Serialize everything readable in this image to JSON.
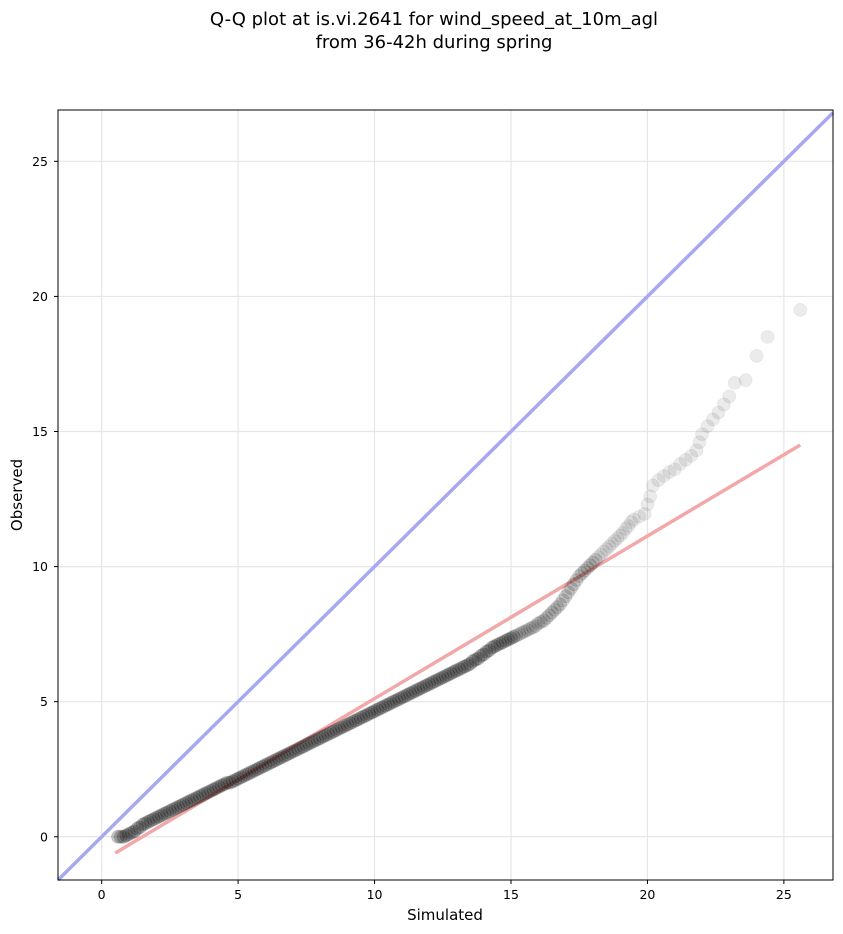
{
  "chart_data": {
    "type": "scatter",
    "title": [
      "Q-Q plot at is.vi.2641 for wind_speed_at_10m_agl",
      "from 36-42h during spring"
    ],
    "xlabel": "Simulated",
    "ylabel": "Observed",
    "xlim": [
      -1.6,
      26.8
    ],
    "ylim": [
      -1.6,
      26.9
    ],
    "xticks": [
      0,
      5,
      10,
      15,
      20,
      25
    ],
    "yticks": [
      0,
      5,
      10,
      15,
      20,
      25
    ],
    "grid": true,
    "colors": {
      "points": "#000000",
      "identity_line": "#a8a8f2",
      "fit_line": "#f2a8a8"
    },
    "identity_line": {
      "x": [
        -1.6,
        26.8
      ],
      "y": [
        -1.6,
        26.8
      ]
    },
    "fit_line": {
      "x": [
        0.5,
        25.6
      ],
      "y": [
        -0.6,
        14.5
      ]
    },
    "points": [
      [
        0.6,
        0.0
      ],
      [
        0.7,
        0.0
      ],
      [
        0.8,
        0.0
      ],
      [
        0.9,
        0.05
      ],
      [
        1.0,
        0.1
      ],
      [
        1.1,
        0.15
      ],
      [
        1.2,
        0.2
      ],
      [
        1.3,
        0.3
      ],
      [
        1.4,
        0.35
      ],
      [
        1.5,
        0.45
      ],
      [
        1.6,
        0.5
      ],
      [
        1.7,
        0.55
      ],
      [
        1.8,
        0.6
      ],
      [
        1.9,
        0.65
      ],
      [
        2.0,
        0.7
      ],
      [
        2.1,
        0.75
      ],
      [
        2.2,
        0.8
      ],
      [
        2.3,
        0.85
      ],
      [
        2.4,
        0.9
      ],
      [
        2.5,
        0.95
      ],
      [
        2.6,
        1.0
      ],
      [
        2.7,
        1.05
      ],
      [
        2.8,
        1.1
      ],
      [
        2.9,
        1.15
      ],
      [
        3.0,
        1.2
      ],
      [
        3.1,
        1.25
      ],
      [
        3.2,
        1.3
      ],
      [
        3.3,
        1.35
      ],
      [
        3.4,
        1.4
      ],
      [
        3.5,
        1.45
      ],
      [
        3.6,
        1.5
      ],
      [
        3.7,
        1.55
      ],
      [
        3.8,
        1.6
      ],
      [
        3.9,
        1.65
      ],
      [
        4.0,
        1.7
      ],
      [
        4.1,
        1.75
      ],
      [
        4.2,
        1.8
      ],
      [
        4.3,
        1.85
      ],
      [
        4.4,
        1.9
      ],
      [
        4.5,
        1.95
      ],
      [
        4.6,
        2.0
      ],
      [
        4.7,
        2.0
      ],
      [
        4.8,
        2.05
      ],
      [
        4.9,
        2.1
      ],
      [
        5.0,
        2.15
      ],
      [
        5.1,
        2.2
      ],
      [
        5.2,
        2.25
      ],
      [
        5.3,
        2.3
      ],
      [
        5.4,
        2.35
      ],
      [
        5.5,
        2.4
      ],
      [
        5.6,
        2.45
      ],
      [
        5.7,
        2.5
      ],
      [
        5.8,
        2.55
      ],
      [
        5.9,
        2.6
      ],
      [
        6.0,
        2.65
      ],
      [
        6.1,
        2.7
      ],
      [
        6.2,
        2.75
      ],
      [
        6.3,
        2.8
      ],
      [
        6.4,
        2.85
      ],
      [
        6.5,
        2.9
      ],
      [
        6.6,
        2.95
      ],
      [
        6.7,
        3.0
      ],
      [
        6.8,
        3.05
      ],
      [
        6.9,
        3.1
      ],
      [
        7.0,
        3.15
      ],
      [
        7.1,
        3.2
      ],
      [
        7.2,
        3.25
      ],
      [
        7.3,
        3.3
      ],
      [
        7.4,
        3.35
      ],
      [
        7.5,
        3.4
      ],
      [
        7.6,
        3.45
      ],
      [
        7.7,
        3.5
      ],
      [
        7.8,
        3.55
      ],
      [
        7.9,
        3.6
      ],
      [
        8.0,
        3.65
      ],
      [
        8.1,
        3.7
      ],
      [
        8.2,
        3.75
      ],
      [
        8.3,
        3.8
      ],
      [
        8.4,
        3.85
      ],
      [
        8.5,
        3.9
      ],
      [
        8.6,
        3.95
      ],
      [
        8.7,
        4.0
      ],
      [
        8.8,
        4.05
      ],
      [
        8.9,
        4.1
      ],
      [
        9.0,
        4.15
      ],
      [
        9.1,
        4.2
      ],
      [
        9.2,
        4.25
      ],
      [
        9.3,
        4.3
      ],
      [
        9.4,
        4.35
      ],
      [
        9.5,
        4.4
      ],
      [
        9.6,
        4.45
      ],
      [
        9.7,
        4.5
      ],
      [
        9.8,
        4.55
      ],
      [
        9.9,
        4.6
      ],
      [
        10.0,
        4.65
      ],
      [
        10.1,
        4.7
      ],
      [
        10.2,
        4.75
      ],
      [
        10.3,
        4.8
      ],
      [
        10.4,
        4.85
      ],
      [
        10.5,
        4.9
      ],
      [
        10.6,
        4.95
      ],
      [
        10.7,
        5.0
      ],
      [
        10.8,
        5.05
      ],
      [
        10.9,
        5.1
      ],
      [
        11.0,
        5.15
      ],
      [
        11.1,
        5.2
      ],
      [
        11.2,
        5.25
      ],
      [
        11.3,
        5.3
      ],
      [
        11.4,
        5.35
      ],
      [
        11.5,
        5.4
      ],
      [
        11.6,
        5.45
      ],
      [
        11.7,
        5.5
      ],
      [
        11.8,
        5.55
      ],
      [
        11.9,
        5.6
      ],
      [
        12.0,
        5.65
      ],
      [
        12.1,
        5.7
      ],
      [
        12.2,
        5.75
      ],
      [
        12.3,
        5.8
      ],
      [
        12.4,
        5.85
      ],
      [
        12.5,
        5.9
      ],
      [
        12.6,
        5.95
      ],
      [
        12.7,
        6.0
      ],
      [
        12.8,
        6.05
      ],
      [
        12.9,
        6.1
      ],
      [
        13.0,
        6.15
      ],
      [
        13.1,
        6.2
      ],
      [
        13.2,
        6.25
      ],
      [
        13.3,
        6.3
      ],
      [
        13.4,
        6.35
      ],
      [
        13.5,
        6.4
      ],
      [
        13.6,
        6.5
      ],
      [
        13.7,
        6.55
      ],
      [
        13.8,
        6.6
      ],
      [
        13.9,
        6.7
      ],
      [
        14.0,
        6.75
      ],
      [
        14.1,
        6.85
      ],
      [
        14.2,
        6.9
      ],
      [
        14.3,
        7.0
      ],
      [
        14.4,
        7.05
      ],
      [
        14.5,
        7.1
      ],
      [
        14.6,
        7.15
      ],
      [
        14.7,
        7.2
      ],
      [
        14.8,
        7.25
      ],
      [
        14.9,
        7.3
      ],
      [
        15.0,
        7.35
      ],
      [
        15.1,
        7.4
      ],
      [
        15.2,
        7.45
      ],
      [
        15.3,
        7.5
      ],
      [
        15.4,
        7.55
      ],
      [
        15.5,
        7.6
      ],
      [
        15.6,
        7.65
      ],
      [
        15.7,
        7.7
      ],
      [
        15.8,
        7.75
      ],
      [
        15.9,
        7.8
      ],
      [
        16.0,
        7.9
      ],
      [
        16.1,
        7.95
      ],
      [
        16.2,
        8.0
      ],
      [
        16.3,
        8.1
      ],
      [
        16.4,
        8.2
      ],
      [
        16.5,
        8.3
      ],
      [
        16.6,
        8.4
      ],
      [
        16.7,
        8.5
      ],
      [
        16.8,
        8.6
      ],
      [
        16.9,
        8.75
      ],
      [
        17.0,
        8.9
      ],
      [
        17.1,
        9.05
      ],
      [
        17.2,
        9.2
      ],
      [
        17.3,
        9.35
      ],
      [
        17.4,
        9.5
      ],
      [
        17.5,
        9.65
      ],
      [
        17.6,
        9.75
      ],
      [
        17.7,
        9.85
      ],
      [
        17.8,
        9.95
      ],
      [
        17.9,
        10.05
      ],
      [
        18.0,
        10.15
      ],
      [
        18.1,
        10.25
      ],
      [
        18.2,
        10.35
      ],
      [
        18.3,
        10.45
      ],
      [
        18.4,
        10.55
      ],
      [
        18.5,
        10.65
      ],
      [
        18.6,
        10.75
      ],
      [
        18.7,
        10.85
      ],
      [
        18.8,
        10.95
      ],
      [
        18.9,
        11.05
      ],
      [
        19.0,
        11.15
      ],
      [
        19.1,
        11.25
      ],
      [
        19.2,
        11.4
      ],
      [
        19.3,
        11.5
      ],
      [
        19.4,
        11.65
      ],
      [
        19.5,
        11.75
      ],
      [
        19.7,
        11.85
      ],
      [
        19.9,
        11.95
      ],
      [
        20.0,
        12.3
      ],
      [
        20.1,
        12.6
      ],
      [
        20.2,
        13.0
      ],
      [
        20.4,
        13.2
      ],
      [
        20.6,
        13.35
      ],
      [
        20.8,
        13.5
      ],
      [
        21.0,
        13.6
      ],
      [
        21.2,
        13.8
      ],
      [
        21.4,
        13.95
      ],
      [
        21.6,
        14.1
      ],
      [
        21.8,
        14.3
      ],
      [
        21.9,
        14.6
      ],
      [
        22.0,
        14.9
      ],
      [
        22.2,
        15.2
      ],
      [
        22.4,
        15.45
      ],
      [
        22.6,
        15.7
      ],
      [
        22.8,
        16.0
      ],
      [
        23.0,
        16.3
      ],
      [
        23.2,
        16.8
      ],
      [
        23.6,
        16.9
      ],
      [
        24.0,
        17.8
      ],
      [
        24.4,
        18.5
      ],
      [
        25.6,
        19.5
      ]
    ]
  }
}
